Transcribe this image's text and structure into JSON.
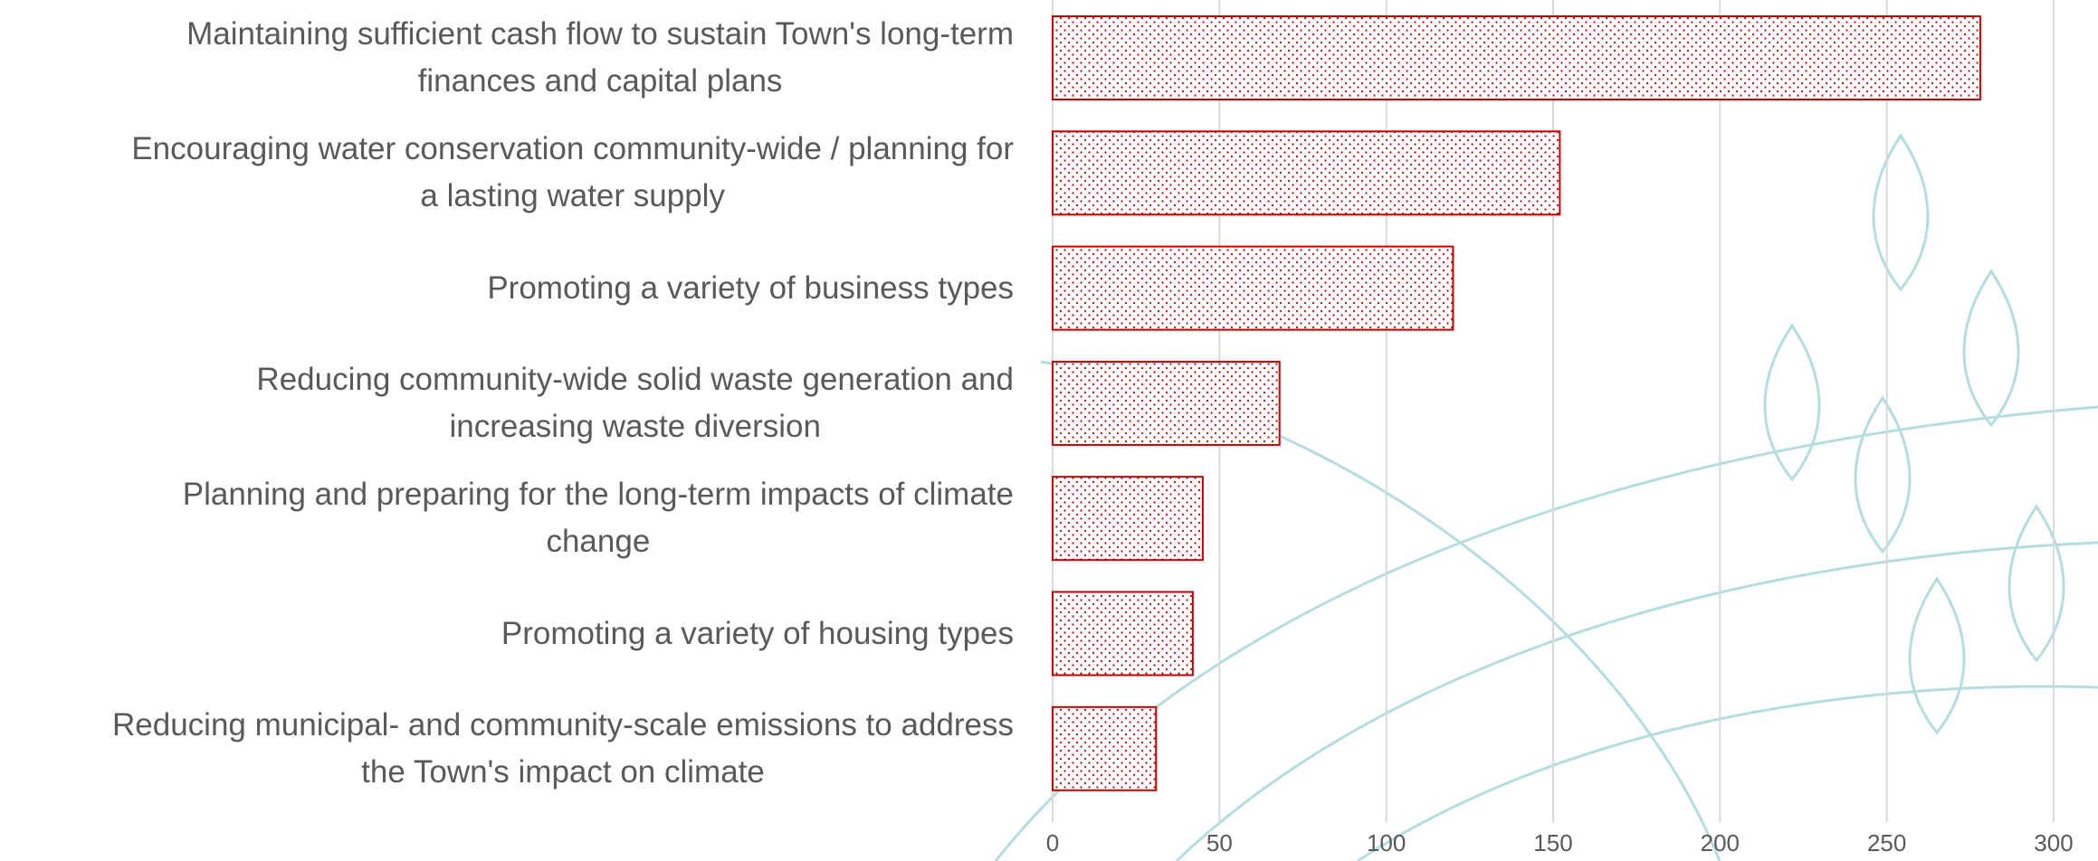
{
  "chart_data": {
    "type": "bar",
    "orientation": "horizontal",
    "categories": [
      "Maintaining sufficient cash flow to sustain Town's long-term\nfinances and capital plans",
      "Encouraging water conservation community-wide / planning for\na lasting water supply",
      "Promoting a variety of business types",
      "Reducing community-wide solid waste generation and\nincreasing waste diversion",
      "Planning and preparing for the long-term impacts of climate\nchange",
      "Promoting a variety of housing types",
      "Reducing municipal- and community-scale emissions to address\nthe Town's impact on climate"
    ],
    "values": [
      278,
      152,
      120,
      68,
      45,
      42,
      31
    ],
    "color": "#c00000",
    "xlim": [
      0,
      300
    ],
    "xticks": [
      0,
      50,
      100,
      150,
      200,
      250,
      300
    ],
    "grid": true
  }
}
